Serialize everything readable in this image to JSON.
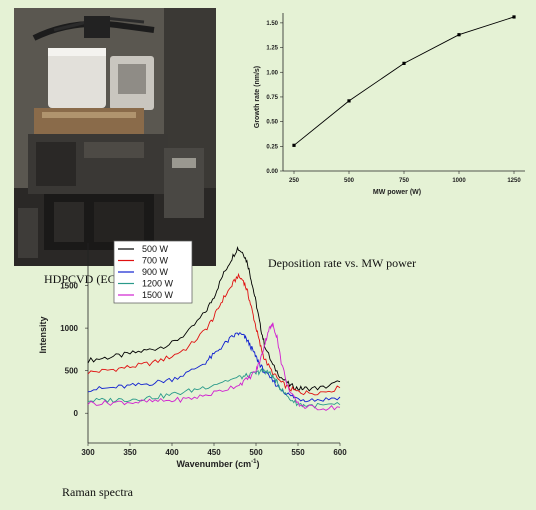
{
  "captions": {
    "photo": "HDPCVD (EC",
    "growth": "Deposition rate vs. MW power",
    "raman": "Raman spectra"
  },
  "photo_subject": "hdpcvd-reactor-photo",
  "chart_data": [
    {
      "type": "line",
      "title": "",
      "xlabel": "MW power (W)",
      "ylabel": "Growth rate (nm/s)",
      "x": [
        250,
        500,
        750,
        1000,
        1250
      ],
      "series": [
        {
          "values": [
            0.26,
            0.71,
            1.09,
            1.38,
            1.56
          ],
          "color": "#000000"
        }
      ],
      "xticks": [
        250,
        500,
        750,
        1000,
        1250
      ],
      "yticks": [
        0.0,
        0.25,
        0.5,
        0.75,
        1.0,
        1.25,
        1.5
      ],
      "xlim": [
        200,
        1300
      ],
      "ylim": [
        0,
        1.6
      ],
      "grid": false,
      "legend": "none"
    },
    {
      "type": "line",
      "title": "",
      "xlabel": "Wavenumber (cm",
      "xlabel_sup": "-1",
      "xlabel_suffix": ")",
      "ylabel": "Intensity",
      "xticks": [
        300,
        350,
        400,
        450,
        500,
        550,
        600
      ],
      "yticks": [
        0,
        500,
        1000,
        1500
      ],
      "xlim": [
        300,
        600
      ],
      "ylim": [
        -350,
        2000
      ],
      "grid": false,
      "legend": "top-left",
      "series": [
        {
          "name": "500 W",
          "color": "#000000",
          "x": [
            300,
            320,
            340,
            360,
            380,
            400,
            420,
            440,
            450,
            460,
            470,
            478,
            485,
            490,
            495,
            500,
            505,
            510,
            520,
            530,
            540,
            550,
            560,
            580,
            600
          ],
          "values": [
            620,
            650,
            680,
            720,
            760,
            820,
            960,
            1190,
            1370,
            1610,
            1800,
            1940,
            1880,
            1760,
            1540,
            1300,
            1030,
            810,
            560,
            420,
            330,
            290,
            290,
            300,
            370
          ]
        },
        {
          "name": "700 W",
          "color": "#e01010",
          "x": [
            300,
            320,
            340,
            360,
            380,
            400,
            420,
            440,
            450,
            460,
            470,
            478,
            485,
            490,
            495,
            500,
            505,
            510,
            520,
            530,
            540,
            550,
            560,
            580,
            600
          ],
          "values": [
            480,
            500,
            530,
            560,
            600,
            670,
            780,
            980,
            1130,
            1330,
            1480,
            1610,
            1560,
            1420,
            1220,
            1010,
            800,
            640,
            470,
            360,
            290,
            250,
            240,
            250,
            300
          ]
        },
        {
          "name": "900 W",
          "color": "#1020d0",
          "x": [
            300,
            320,
            340,
            360,
            380,
            400,
            420,
            440,
            450,
            460,
            470,
            478,
            485,
            490,
            495,
            500,
            505,
            510,
            520,
            530,
            540,
            550,
            560,
            580,
            600
          ],
          "values": [
            280,
            290,
            310,
            330,
            360,
            400,
            480,
            600,
            690,
            790,
            880,
            940,
            910,
            850,
            760,
            660,
            570,
            480,
            380,
            280,
            210,
            170,
            160,
            160,
            190
          ]
        },
        {
          "name": "1200 W",
          "color": "#2a9a8a",
          "x": [
            300,
            320,
            340,
            360,
            380,
            400,
            420,
            440,
            460,
            480,
            490,
            500,
            505,
            510,
            515,
            520,
            525,
            530,
            540,
            550,
            560,
            580,
            600
          ],
          "values": [
            150,
            150,
            160,
            170,
            190,
            220,
            260,
            310,
            370,
            420,
            440,
            470,
            490,
            500,
            480,
            430,
            360,
            280,
            170,
            110,
            90,
            90,
            100
          ]
        },
        {
          "name": "1500 W",
          "color": "#d020d0",
          "x": [
            300,
            320,
            340,
            360,
            380,
            400,
            420,
            440,
            460,
            480,
            490,
            500,
            505,
            510,
            515,
            520,
            525,
            530,
            540,
            550,
            560,
            580,
            600
          ],
          "values": [
            120,
            120,
            130,
            130,
            140,
            150,
            170,
            210,
            270,
            340,
            400,
            500,
            620,
            800,
            980,
            1040,
            900,
            600,
            250,
            110,
            70,
            60,
            70
          ]
        }
      ]
    }
  ]
}
